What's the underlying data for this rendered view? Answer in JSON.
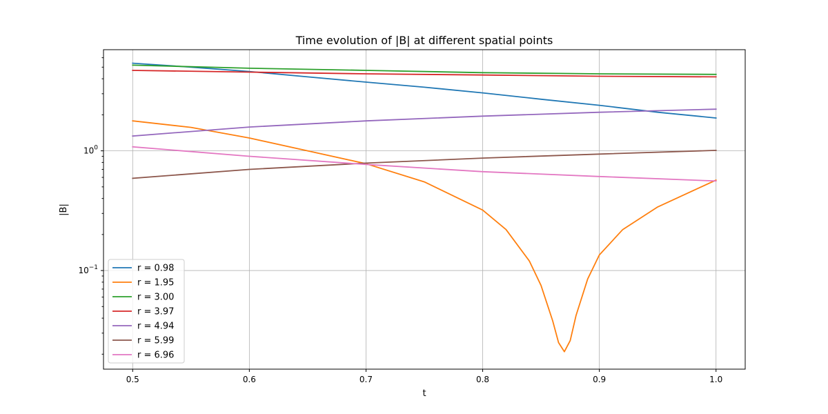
{
  "chart_data": {
    "type": "line",
    "title": "Time evolution of |B| at different spatial points",
    "xlabel": "t",
    "ylabel": "|B|",
    "xlim": [
      0.475,
      1.025
    ],
    "ylim": [
      0.015,
      7.0
    ],
    "yscale": "log",
    "grid": true,
    "legend_position": "lower-left",
    "x_ticks": [
      0.5,
      0.6,
      0.7,
      0.8,
      0.9,
      1.0
    ],
    "x_tick_labels": [
      "0.5",
      "0.6",
      "0.7",
      "0.8",
      "0.9",
      "1.0"
    ],
    "y_major_ticks": [
      0.1,
      1.0
    ],
    "y_minor_ticks": [
      0.02,
      0.03,
      0.04,
      0.05,
      0.06,
      0.07,
      0.08,
      0.09,
      0.2,
      0.3,
      0.4,
      0.5,
      0.6,
      0.7,
      0.8,
      0.9,
      2,
      3,
      4,
      5,
      6
    ],
    "series": [
      {
        "name": "r = 0.98",
        "color": "#1f77b4",
        "x": [
          0.5,
          0.55,
          0.6,
          0.65,
          0.7,
          0.75,
          0.8,
          0.85,
          0.9,
          0.95,
          1.0
        ],
        "y": [
          5.4,
          5.0,
          4.6,
          4.15,
          3.75,
          3.4,
          3.05,
          2.7,
          2.4,
          2.1,
          1.88
        ]
      },
      {
        "name": "r = 1.95",
        "color": "#ff7f0e",
        "x": [
          0.5,
          0.55,
          0.6,
          0.65,
          0.7,
          0.75,
          0.8,
          0.82,
          0.84,
          0.85,
          0.86,
          0.865,
          0.87,
          0.875,
          0.88,
          0.89,
          0.9,
          0.92,
          0.95,
          1.0
        ],
        "y": [
          1.78,
          1.57,
          1.28,
          1.0,
          0.78,
          0.55,
          0.32,
          0.22,
          0.12,
          0.075,
          0.038,
          0.025,
          0.021,
          0.026,
          0.042,
          0.085,
          0.135,
          0.22,
          0.34,
          0.57
        ]
      },
      {
        "name": "r = 3.00",
        "color": "#2ca02c",
        "x": [
          0.5,
          0.6,
          0.7,
          0.8,
          0.9,
          1.0
        ],
        "y": [
          5.2,
          4.9,
          4.7,
          4.5,
          4.4,
          4.35
        ]
      },
      {
        "name": "r = 3.97",
        "color": "#d62728",
        "x": [
          0.5,
          0.6,
          0.7,
          0.8,
          0.9,
          1.0
        ],
        "y": [
          4.7,
          4.55,
          4.4,
          4.3,
          4.2,
          4.15
        ]
      },
      {
        "name": "r = 4.94",
        "color": "#9467bd",
        "x": [
          0.5,
          0.6,
          0.7,
          0.8,
          0.9,
          1.0
        ],
        "y": [
          1.33,
          1.58,
          1.78,
          1.95,
          2.1,
          2.23
        ]
      },
      {
        "name": "r = 5.99",
        "color": "#8c564b",
        "x": [
          0.5,
          0.6,
          0.7,
          0.8,
          0.9,
          1.0
        ],
        "y": [
          0.59,
          0.7,
          0.79,
          0.87,
          0.94,
          1.01
        ]
      },
      {
        "name": "r = 6.96",
        "color": "#e377c2",
        "x": [
          0.5,
          0.6,
          0.7,
          0.8,
          0.9,
          1.0
        ],
        "y": [
          1.08,
          0.9,
          0.77,
          0.67,
          0.61,
          0.56
        ]
      }
    ]
  }
}
